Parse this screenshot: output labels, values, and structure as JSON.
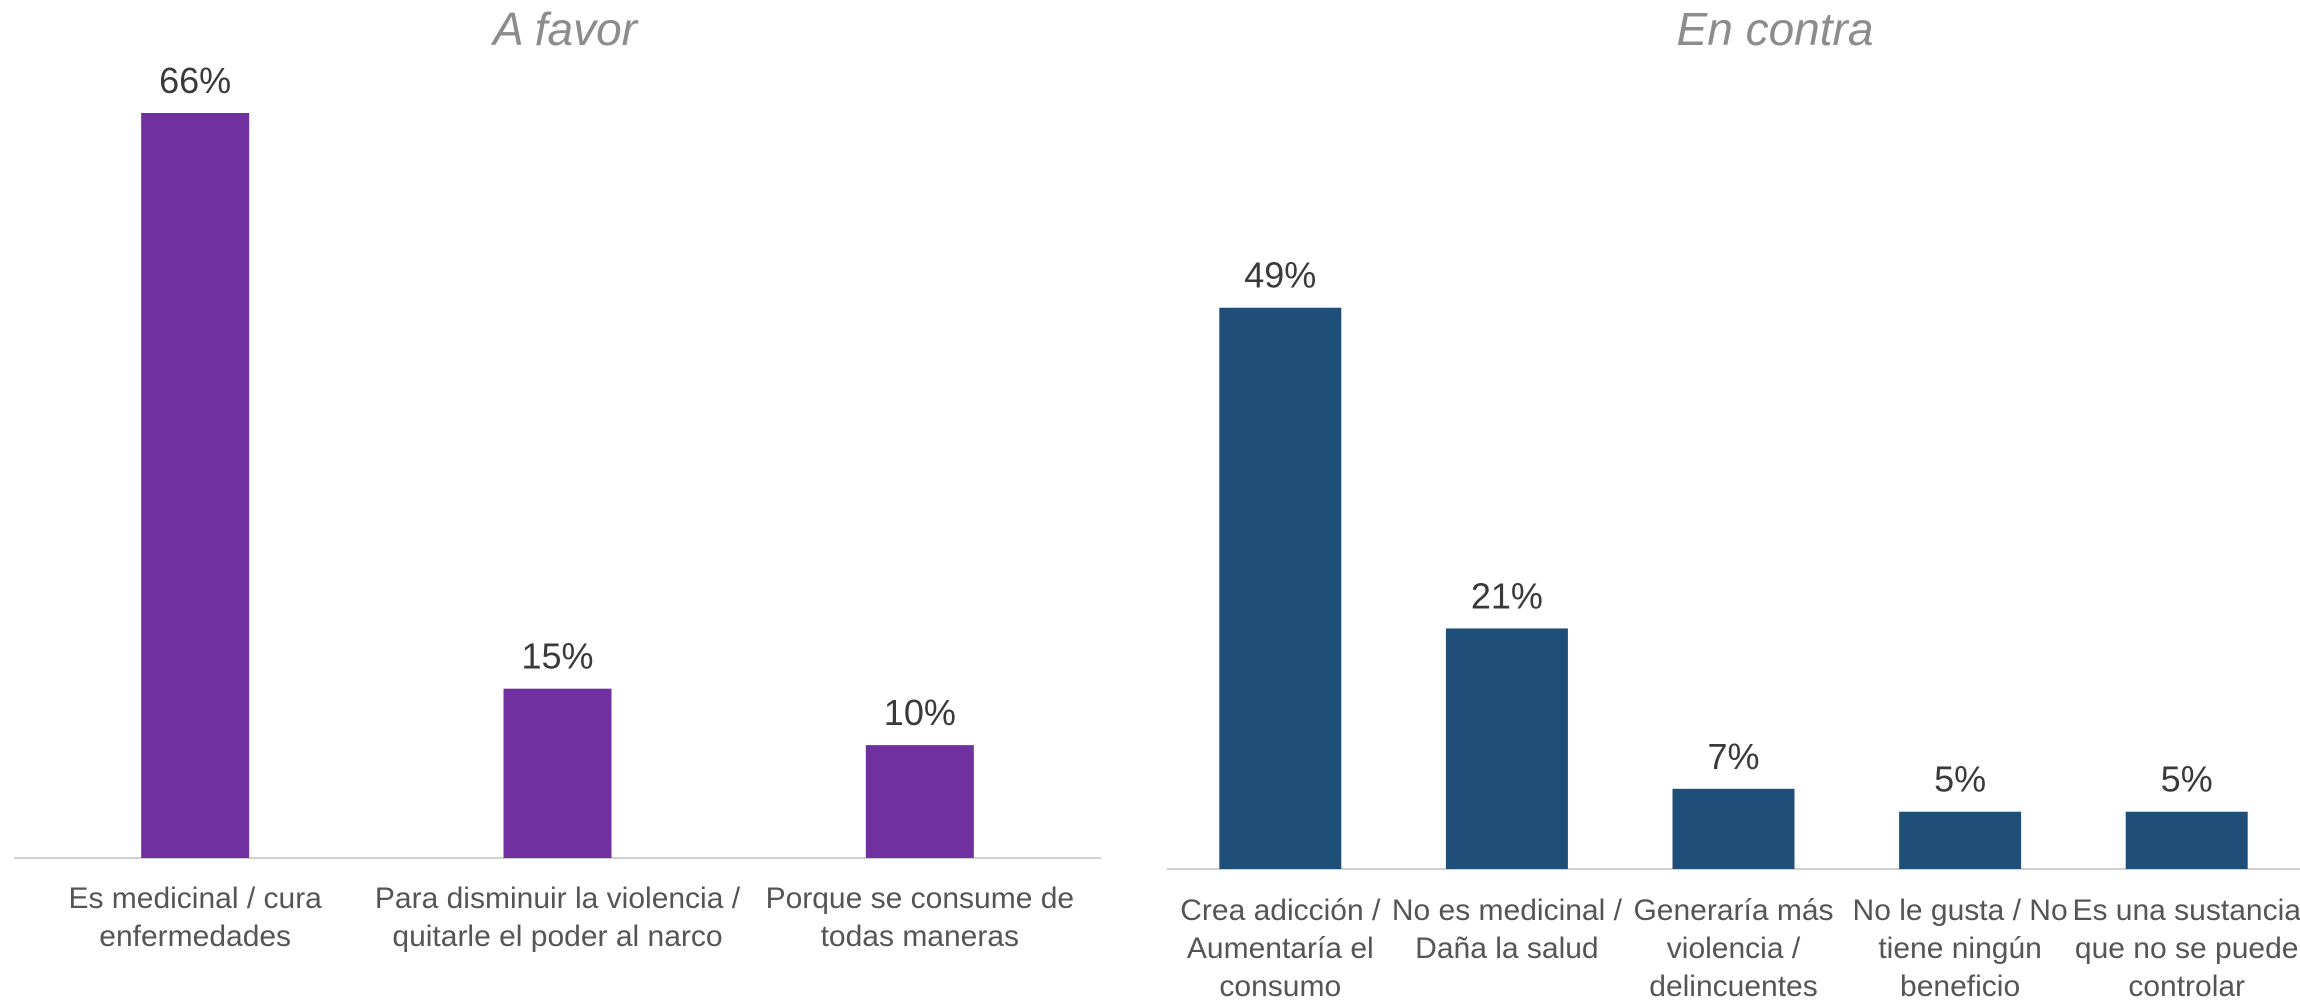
{
  "chart_data": [
    {
      "type": "bar",
      "title": "A favor",
      "categories": [
        "Es medicinal / cura enfermedades",
        "Para disminuir la violencia / quitarle el poder al narco",
        "Porque se consume de todas maneras"
      ],
      "category_lines": [
        [
          "Es medicinal / cura",
          "enfermedades"
        ],
        [
          "Para disminuir la violencia /",
          "quitarle el poder al narco"
        ],
        [
          "Porque se consume de",
          "todas maneras"
        ]
      ],
      "values": [
        66,
        15,
        10
      ],
      "value_labels": [
        "66%",
        "15%",
        "10%"
      ],
      "color": "#7030a0",
      "ylim": [
        0,
        66
      ],
      "grid": false,
      "legend": "none"
    },
    {
      "type": "bar",
      "title": "En contra",
      "categories": [
        "Crea adicción / Aumentaría el consumo",
        "No es medicinal / Daña la salud",
        "Generaría más violencia / delincuentes",
        "No le gusta / No tiene ningún beneficio",
        "Es una sustancia que no se puede controlar"
      ],
      "category_lines": [
        [
          "Crea adicción /",
          "Aumentaría el",
          "consumo"
        ],
        [
          "No es medicinal /",
          "Daña la salud"
        ],
        [
          "Generaría más",
          "violencia /",
          "delincuentes"
        ],
        [
          "No le gusta / No",
          "tiene ningún",
          "beneficio"
        ],
        [
          "Es una sustancia",
          "que no se puede",
          "controlar"
        ]
      ],
      "values": [
        49,
        21,
        7,
        5,
        5
      ],
      "value_labels": [
        "49%",
        "21%",
        "7%",
        "5%",
        "5%"
      ],
      "color": "#1f4e79",
      "ylim": [
        0,
        66
      ],
      "grid": false,
      "legend": "none"
    }
  ]
}
